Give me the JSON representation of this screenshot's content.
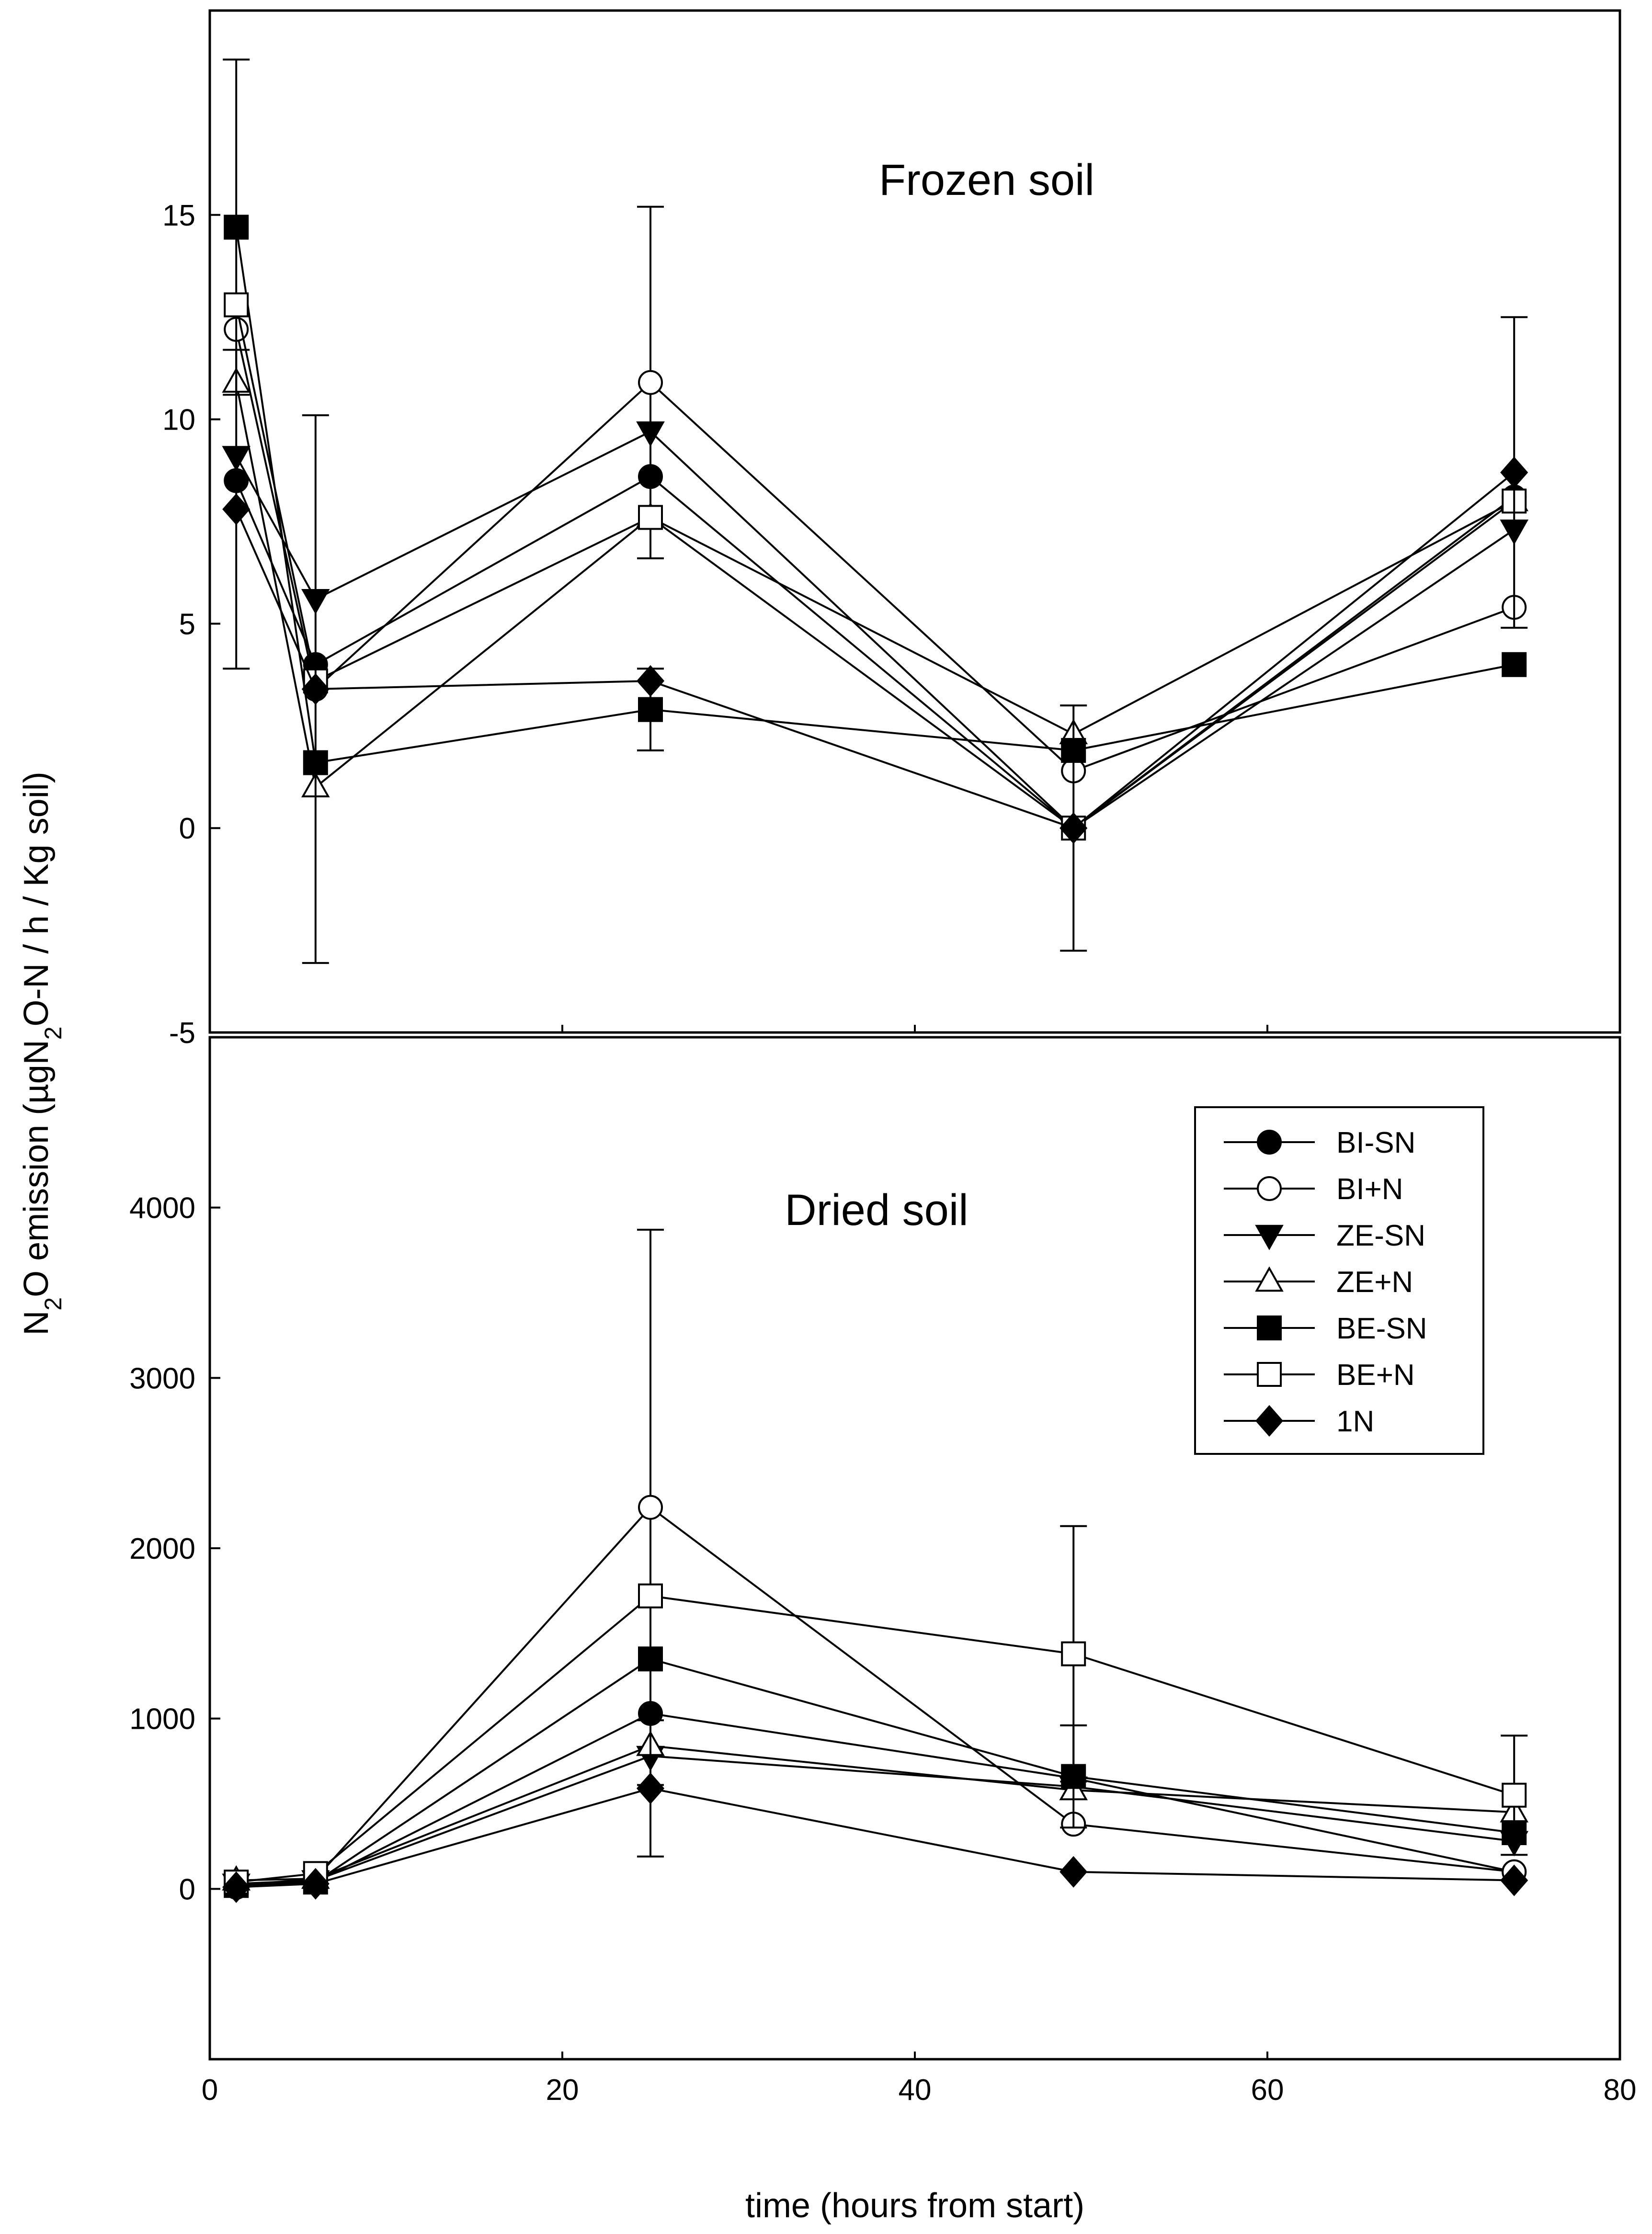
{
  "chart_data": [
    {
      "panel": "top",
      "type": "line",
      "title": "Frozen soil",
      "x": [
        1.5,
        6,
        25,
        49,
        74
      ],
      "xlim": [
        0,
        80
      ],
      "ylim": [
        -5,
        20
      ],
      "yticks": [
        -5,
        0,
        5,
        10,
        15
      ],
      "series": [
        {
          "name": "BI-SN",
          "values": [
            8.5,
            4.0,
            8.6,
            0.0,
            8.1
          ],
          "errors": [
            0,
            0,
            0,
            0,
            0
          ]
        },
        {
          "name": "BI+N",
          "values": [
            12.2,
            3.4,
            10.9,
            1.4,
            5.4
          ],
          "errors": [
            0,
            0,
            4.3,
            0,
            0
          ]
        },
        {
          "name": "ZE-SN",
          "values": [
            9.1,
            5.6,
            9.7,
            0.0,
            7.3
          ],
          "errors": [
            0,
            0,
            0,
            0,
            0
          ]
        },
        {
          "name": "ZE+N",
          "values": [
            10.9,
            1.0,
            7.6,
            2.3,
            8.0
          ],
          "errors": [
            0,
            0,
            0,
            0,
            0
          ]
        },
        {
          "name": "BE-SN",
          "values": [
            14.7,
            1.6,
            2.9,
            1.9,
            4.0
          ],
          "errors": [
            4.1,
            0,
            1.0,
            0,
            0
          ]
        },
        {
          "name": "BE+N",
          "values": [
            12.8,
            3.6,
            7.6,
            0.0,
            8.0
          ],
          "errors": [
            0,
            0,
            0,
            0,
            0
          ]
        },
        {
          "name": "1N",
          "values": [
            7.8,
            3.4,
            3.6,
            0.0,
            8.7
          ],
          "errors": [
            3.9,
            6.7,
            0,
            3.0,
            3.8
          ]
        }
      ]
    },
    {
      "panel": "bottom",
      "type": "line",
      "title": "Dried soil",
      "x": [
        1.5,
        6,
        25,
        49,
        74
      ],
      "xlim": [
        0,
        80
      ],
      "ylim": [
        -1000,
        5000
      ],
      "yticks": [
        0,
        1000,
        2000,
        3000,
        4000
      ],
      "xticks": [
        0,
        20,
        40,
        60,
        80
      ],
      "xlabel": "time (hours from start)",
      "series": [
        {
          "name": "BI-SN",
          "values": [
            10,
            40,
            1030,
            650,
            100
          ],
          "errors": [
            0,
            0,
            0,
            0,
            0
          ]
        },
        {
          "name": "BI+N",
          "values": [
            20,
            60,
            2240,
            380,
            100
          ],
          "errors": [
            0,
            0,
            1630,
            0,
            0
          ]
        },
        {
          "name": "ZE-SN",
          "values": [
            30,
            50,
            780,
            600,
            280
          ],
          "errors": [
            0,
            0,
            0,
            0,
            0
          ]
        },
        {
          "name": "ZE+N",
          "values": [
            50,
            60,
            840,
            580,
            450
          ],
          "errors": [
            0,
            0,
            0,
            0,
            0
          ]
        },
        {
          "name": "BE-SN",
          "values": [
            20,
            40,
            1350,
            660,
            330
          ],
          "errors": [
            0,
            0,
            0,
            300,
            0
          ]
        },
        {
          "name": "BE+N",
          "values": [
            40,
            90,
            1720,
            1380,
            550
          ],
          "errors": [
            0,
            0,
            0,
            750,
            350
          ]
        },
        {
          "name": "1N",
          "values": [
            10,
            30,
            590,
            100,
            50
          ],
          "errors": [
            0,
            0,
            400,
            0,
            0
          ]
        }
      ]
    }
  ],
  "ylabel": {
    "prefix": "N",
    "sub1": "2",
    "mid": "O emission (µgN",
    "sub2": "2",
    "suffix": "O-N / h / Kg soil)"
  },
  "legend": [
    {
      "name": "BI-SN",
      "marker": "circle",
      "fill": "#000000"
    },
    {
      "name": "BI+N",
      "marker": "circle",
      "fill": "#ffffff"
    },
    {
      "name": "ZE-SN",
      "marker": "triangle-down",
      "fill": "#000000"
    },
    {
      "name": "ZE+N",
      "marker": "triangle-up",
      "fill": "#ffffff"
    },
    {
      "name": "BE-SN",
      "marker": "square",
      "fill": "#000000"
    },
    {
      "name": "BE+N",
      "marker": "square",
      "fill": "#ffffff"
    },
    {
      "name": "1N",
      "marker": "diamond",
      "fill": "#000000"
    }
  ],
  "colors": {
    "line": "#000000",
    "background": "#ffffff"
  }
}
